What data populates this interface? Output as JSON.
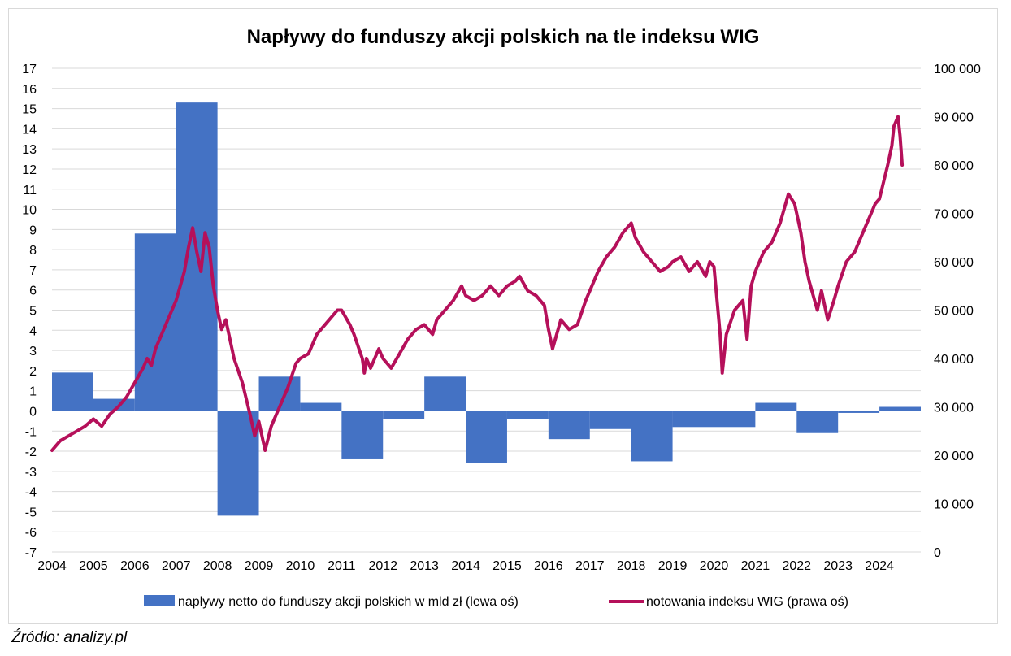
{
  "source_note": "Źródło: analizy.pl",
  "chart_data": {
    "type": "bar+line",
    "title": "Napływy do funduszy akcji polskich na tle indeksu WIG",
    "categories": [
      "2004",
      "2005",
      "2006",
      "2007",
      "2008",
      "2009",
      "2010",
      "2011",
      "2012",
      "2013",
      "2014",
      "2015",
      "2016",
      "2017",
      "2018",
      "2019",
      "2020",
      "2021",
      "2022",
      "2023",
      "2024"
    ],
    "y_left": {
      "ylim": [
        -7,
        17
      ],
      "ticks": [
        "-7",
        "-6",
        "-5",
        "-4",
        "-3",
        "-2",
        "-1",
        "0",
        "1",
        "2",
        "3",
        "4",
        "5",
        "6",
        "7",
        "8",
        "9",
        "10",
        "11",
        "12",
        "13",
        "14",
        "15",
        "16",
        "17"
      ]
    },
    "y_right": {
      "ylim": [
        0,
        100000
      ],
      "ticks": [
        "0",
        "10 000",
        "20 000",
        "30 000",
        "40 000",
        "50 000",
        "60 000",
        "70 000",
        "80 000",
        "90 000",
        "100 000"
      ]
    },
    "series": [
      {
        "name": "napływy netto do funduszy akcji polskich w mld zł (lewa oś)",
        "type": "bar",
        "axis": "left",
        "color": "#4472c4",
        "values": [
          1.9,
          0.6,
          8.8,
          15.3,
          -5.2,
          1.7,
          0.4,
          -2.4,
          -0.4,
          1.7,
          -2.6,
          -0.4,
          -1.4,
          -0.9,
          -2.5,
          -0.8,
          -0.8,
          0.4,
          -1.1,
          -0.1,
          0.2
        ]
      },
      {
        "name": "notowania indeksu WIG (prawa oś)",
        "type": "line",
        "axis": "right",
        "color": "#b5105a",
        "x": [
          2004.0,
          2004.2,
          2004.4,
          2004.6,
          2004.8,
          2005.0,
          2005.2,
          2005.4,
          2005.6,
          2005.8,
          2006.0,
          2006.2,
          2006.3,
          2006.4,
          2006.5,
          2006.6,
          2006.8,
          2007.0,
          2007.2,
          2007.3,
          2007.4,
          2007.5,
          2007.6,
          2007.7,
          2007.8,
          2007.9,
          2008.0,
          2008.1,
          2008.2,
          2008.3,
          2008.4,
          2008.6,
          2008.8,
          2008.9,
          2009.0,
          2009.1,
          2009.15,
          2009.3,
          2009.5,
          2009.7,
          2009.9,
          2010.0,
          2010.2,
          2010.4,
          2010.5,
          2010.7,
          2010.9,
          2011.0,
          2011.2,
          2011.3,
          2011.5,
          2011.55,
          2011.6,
          2011.7,
          2011.9,
          2012.0,
          2012.2,
          2012.4,
          2012.6,
          2012.8,
          2013.0,
          2013.2,
          2013.3,
          2013.5,
          2013.7,
          2013.9,
          2014.0,
          2014.2,
          2014.4,
          2014.6,
          2014.8,
          2015.0,
          2015.2,
          2015.3,
          2015.5,
          2015.7,
          2015.9,
          2016.0,
          2016.1,
          2016.3,
          2016.5,
          2016.7,
          2016.9,
          2017.0,
          2017.2,
          2017.4,
          2017.6,
          2017.8,
          2018.0,
          2018.1,
          2018.3,
          2018.5,
          2018.7,
          2018.9,
          2019.0,
          2019.2,
          2019.4,
          2019.6,
          2019.8,
          2019.9,
          2020.0,
          2020.15,
          2020.2,
          2020.3,
          2020.5,
          2020.7,
          2020.8,
          2020.9,
          2021.0,
          2021.2,
          2021.4,
          2021.6,
          2021.8,
          2021.95,
          2022.0,
          2022.1,
          2022.2,
          2022.3,
          2022.5,
          2022.6,
          2022.75,
          2022.9,
          2023.0,
          2023.2,
          2023.4,
          2023.6,
          2023.8,
          2023.9,
          2024.0,
          2024.2,
          2024.3,
          2024.35,
          2024.45,
          2024.5,
          2024.55
        ],
        "values": [
          21000,
          23000,
          24000,
          25000,
          26000,
          27500,
          26000,
          28500,
          30000,
          32000,
          35000,
          38000,
          40000,
          38500,
          42000,
          44000,
          48000,
          52000,
          58000,
          63000,
          67000,
          62000,
          58000,
          66000,
          63000,
          55000,
          50000,
          46000,
          48000,
          44000,
          40000,
          35000,
          28000,
          24000,
          27000,
          23000,
          21000,
          26000,
          30000,
          34000,
          39000,
          40000,
          41000,
          45000,
          46000,
          48000,
          50000,
          50000,
          47000,
          45000,
          40000,
          37000,
          40000,
          38000,
          42000,
          40000,
          38000,
          41000,
          44000,
          46000,
          47000,
          45000,
          48000,
          50000,
          52000,
          55000,
          53000,
          52000,
          53000,
          55000,
          53000,
          55000,
          56000,
          57000,
          54000,
          53000,
          51000,
          46000,
          42000,
          48000,
          46000,
          47000,
          52000,
          54000,
          58000,
          61000,
          63000,
          66000,
          68000,
          65000,
          62000,
          60000,
          58000,
          59000,
          60000,
          61000,
          58000,
          60000,
          57000,
          60000,
          59000,
          45000,
          37000,
          45000,
          50000,
          52000,
          44000,
          55000,
          58000,
          62000,
          64000,
          68000,
          74000,
          72000,
          70000,
          66000,
          60000,
          56000,
          50000,
          54000,
          48000,
          52000,
          55000,
          60000,
          62000,
          66000,
          70000,
          72000,
          73000,
          80000,
          84000,
          88000,
          90000,
          86000,
          80000
        ]
      }
    ]
  }
}
